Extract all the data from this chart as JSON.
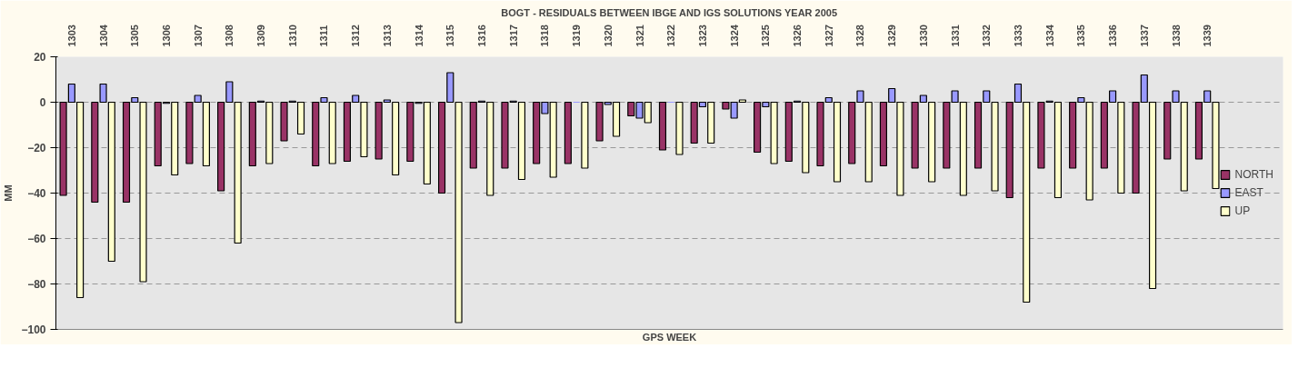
{
  "chart_data": {
    "type": "bar",
    "title": "BOGT - RESIDUALS BETWEEN IBGE AND IGS SOLUTIONS YEAR 2005",
    "xlabel": "GPS WEEK",
    "ylabel": "MM",
    "categories": [
      "1303",
      "1304",
      "1305",
      "1306",
      "1307",
      "1308",
      "1309",
      "1310",
      "1311",
      "1312",
      "1313",
      "1314",
      "1315",
      "1316",
      "1317",
      "1318",
      "1319",
      "1320",
      "1321",
      "1322",
      "1323",
      "1324",
      "1325",
      "1326",
      "1327",
      "1328",
      "1329",
      "1330",
      "1331",
      "1332",
      "1333",
      "1334",
      "1335",
      "1336",
      "1337",
      "1338",
      "1339"
    ],
    "series": [
      {
        "name": "NORTH",
        "color": "#993366",
        "values": [
          -41,
          -44,
          -44,
          -28,
          -27,
          -39,
          -28,
          -17,
          -28,
          -26,
          -25,
          -26,
          -40,
          -29,
          -29,
          -27,
          -27,
          -17,
          -6,
          -21,
          -18,
          -3,
          -22,
          -26,
          -28,
          -27,
          -28,
          -29,
          -29,
          -29,
          -42,
          -29,
          -29,
          -29,
          -40,
          -25,
          -25
        ]
      },
      {
        "name": "EAST",
        "color": "#9999ff",
        "values": [
          8,
          8,
          2,
          -0.5,
          3,
          9,
          0.5,
          0.5,
          2,
          3,
          1,
          -0.5,
          13,
          0.5,
          0.5,
          -5,
          0,
          -1,
          -7,
          0,
          -2,
          -7,
          -2,
          0.5,
          2,
          5,
          6,
          3,
          5,
          5,
          8,
          0.5,
          2,
          5,
          12,
          5,
          5
        ]
      },
      {
        "name": "UP",
        "color": "#ffffcc",
        "values": [
          -86,
          -70,
          -79,
          -32,
          -28,
          -62,
          -27,
          -14,
          -27,
          -24,
          -32,
          -36,
          -97,
          -41,
          -34,
          -33,
          -29,
          -15,
          -9,
          -23,
          -18,
          1,
          -27,
          -31,
          -35,
          -35,
          -41,
          -35,
          -41,
          -39,
          -88,
          -42,
          -43,
          -40,
          -82,
          -39,
          -38
        ]
      }
    ],
    "ylim": [
      -100,
      20
    ],
    "yticks": [
      -100,
      -80,
      -60,
      -40,
      -20,
      0,
      20
    ],
    "grid": "y",
    "legend": "right"
  }
}
